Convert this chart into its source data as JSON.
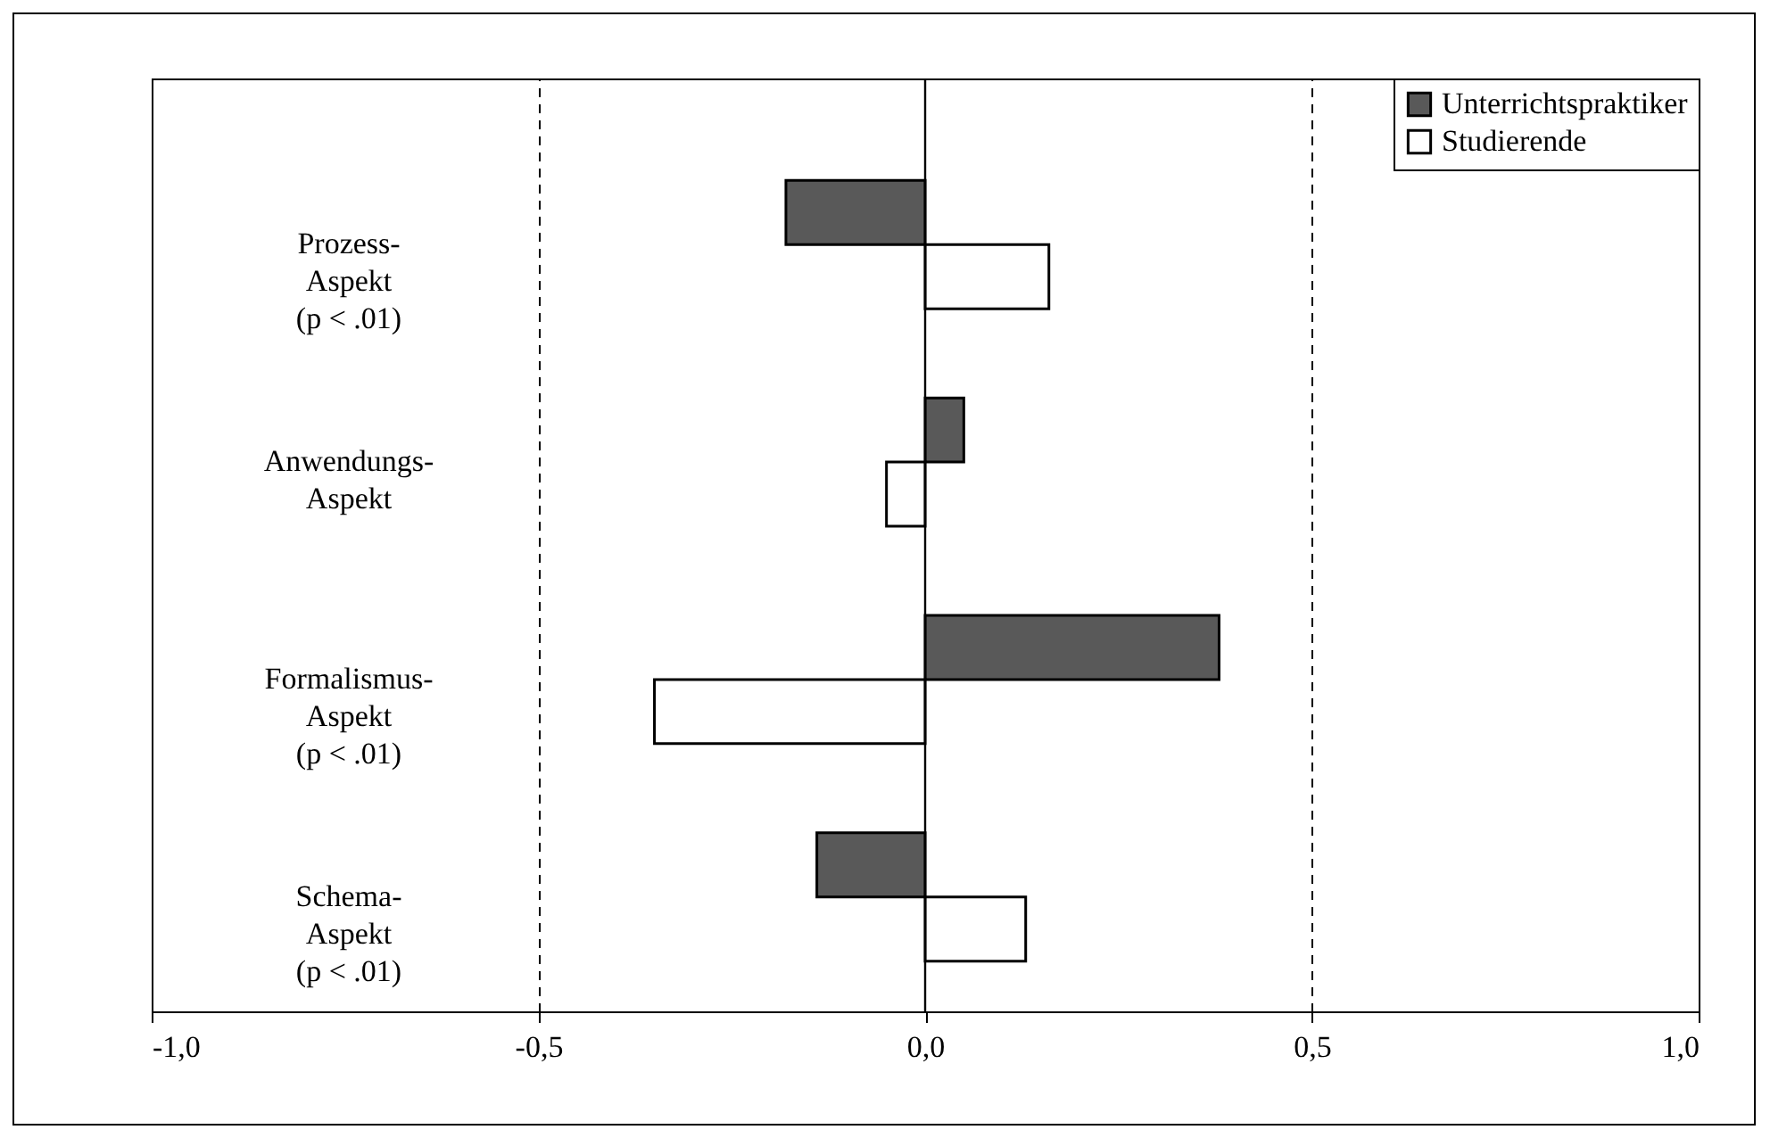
{
  "chart_data": {
    "type": "bar",
    "orientation": "horizontal",
    "categories": [
      "Prozess-\nAspekt\n(p < .01)",
      "Anwendungs-\nAspekt",
      "Formalismus-\nAspekt\n(p < .01)",
      "Schema-\nAspekt\n(p < .01)"
    ],
    "series": [
      {
        "name": "Unterrichtspraktiker",
        "color": "#595959",
        "values": [
          -0.18,
          0.05,
          0.38,
          -0.14
        ]
      },
      {
        "name": "Studierende",
        "color": "#ffffff",
        "values": [
          0.16,
          -0.05,
          -0.35,
          0.13
        ]
      }
    ],
    "xlim": [
      -1,
      1
    ],
    "xticks": [
      {
        "value": -1,
        "label": "-1,0"
      },
      {
        "value": -0.5,
        "label": "-0,5"
      },
      {
        "value": 0,
        "label": "0,0"
      },
      {
        "value": 0.5,
        "label": "0,5"
      },
      {
        "value": 1,
        "label": "1,0"
      }
    ],
    "grid": "x",
    "line_style": "dashed",
    "legend": "top right",
    "ref_lines": [
      {
        "axis": "x",
        "value": 0
      }
    ]
  }
}
